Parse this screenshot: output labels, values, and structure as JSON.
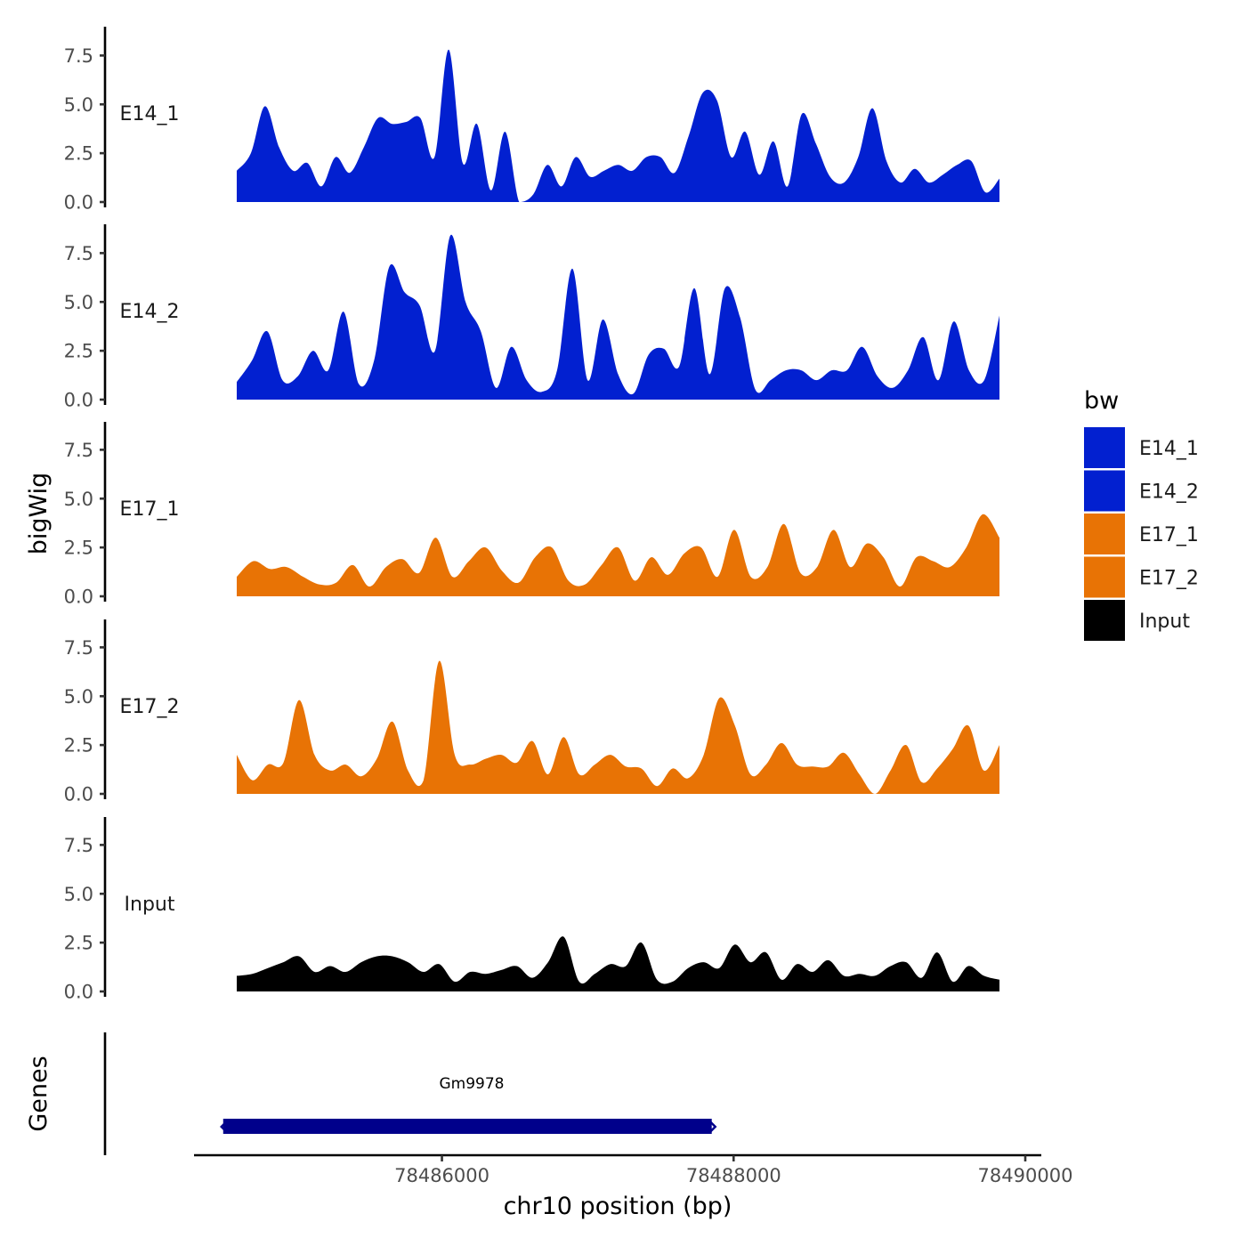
{
  "chart_data": {
    "type": "area",
    "title": "",
    "xlabel": "chr10 position (bp)",
    "ylabel": "bigWig",
    "genes_label": "Genes",
    "xlim": [
      78484300,
      78490000
    ],
    "ylim": [
      0,
      8.8
    ],
    "x_ticks": [
      {
        "value": 78486000,
        "label": "78486000"
      },
      {
        "value": 78488000,
        "label": "78488000"
      },
      {
        "value": 78490000,
        "label": "78490000"
      }
    ],
    "y_ticks": [
      {
        "value": 0.0,
        "label": "0.0"
      },
      {
        "value": 2.5,
        "label": "2.5"
      },
      {
        "value": 5.0,
        "label": "5.0"
      },
      {
        "value": 7.5,
        "label": "7.5"
      }
    ],
    "legend": {
      "title": "bw",
      "position": "right",
      "items": [
        {
          "label": "E14_1",
          "color": "#0220D0"
        },
        {
          "label": "E14_2",
          "color": "#0220D0"
        },
        {
          "label": "E17_1",
          "color": "#E87305"
        },
        {
          "label": "E17_2",
          "color": "#E87305"
        },
        {
          "label": "Input",
          "color": "#000000"
        }
      ]
    },
    "x_start": 78484550,
    "x_step": 100,
    "series": [
      {
        "name": "E14_1",
        "color": "#0220D0",
        "values": [
          1.6,
          2.5,
          4.9,
          2.8,
          1.6,
          2.0,
          0.8,
          2.3,
          1.5,
          2.8,
          4.3,
          4.0,
          4.1,
          4.3,
          2.3,
          7.8,
          2.0,
          4.0,
          0.6,
          3.6,
          0.0,
          0.4,
          1.9,
          0.8,
          2.3,
          1.3,
          1.6,
          1.9,
          1.6,
          2.3,
          2.3,
          1.5,
          3.4,
          5.6,
          5.2,
          2.3,
          3.6,
          1.4,
          3.1,
          0.8,
          4.5,
          3.0,
          1.3,
          1.0,
          2.3,
          4.8,
          2.1,
          1.0,
          1.7,
          1.0,
          1.4,
          1.9,
          2.1,
          0.5,
          1.2
        ]
      },
      {
        "name": "E14_2",
        "color": "#0220D0",
        "values": [
          0.9,
          2.0,
          3.5,
          1.0,
          1.2,
          2.5,
          1.5,
          4.5,
          0.8,
          2.0,
          6.8,
          5.5,
          4.8,
          2.5,
          8.4,
          5.0,
          3.5,
          0.6,
          2.7,
          1.0,
          0.4,
          1.5,
          6.7,
          1.0,
          4.1,
          1.3,
          0.3,
          2.3,
          2.6,
          1.7,
          5.7,
          1.3,
          5.7,
          4.2,
          0.5,
          1.0,
          1.5,
          1.5,
          1.0,
          1.5,
          1.5,
          2.7,
          1.2,
          0.6,
          1.5,
          3.2,
          1.0,
          4.0,
          1.5,
          1.0,
          4.3
        ]
      },
      {
        "name": "E17_1",
        "color": "#E87305",
        "values": [
          1.0,
          1.8,
          1.4,
          1.5,
          1.0,
          0.6,
          0.7,
          1.6,
          0.5,
          1.5,
          1.9,
          1.2,
          3.0,
          1.0,
          1.8,
          2.5,
          1.3,
          0.7,
          2.0,
          2.5,
          0.8,
          0.6,
          1.6,
          2.5,
          0.8,
          2.0,
          1.1,
          2.2,
          2.5,
          1.0,
          3.4,
          1.0,
          1.5,
          3.7,
          1.2,
          1.5,
          3.4,
          1.5,
          2.7,
          2.0,
          0.5,
          2.0,
          1.8,
          1.5,
          2.5,
          4.2,
          3.0
        ]
      },
      {
        "name": "E17_2",
        "color": "#E87305",
        "values": [
          2.0,
          0.7,
          1.5,
          1.6,
          4.8,
          2.0,
          1.2,
          1.5,
          0.9,
          1.8,
          3.7,
          1.2,
          0.7,
          6.8,
          2.0,
          1.5,
          1.8,
          2.0,
          1.6,
          2.7,
          1.0,
          2.9,
          1.0,
          1.5,
          2.0,
          1.4,
          1.3,
          0.4,
          1.3,
          0.8,
          2.0,
          4.9,
          3.5,
          1.0,
          1.5,
          2.6,
          1.5,
          1.4,
          1.4,
          2.1,
          1.0,
          0.0,
          1.2,
          2.5,
          0.6,
          1.3,
          2.3,
          3.5,
          1.2,
          2.5
        ]
      },
      {
        "name": "Input",
        "color": "#000000",
        "values": [
          0.8,
          0.9,
          1.2,
          1.5,
          1.8,
          1.0,
          1.3,
          1.0,
          1.5,
          1.8,
          1.8,
          1.5,
          1.0,
          1.4,
          0.5,
          1.0,
          0.9,
          1.1,
          1.3,
          0.7,
          1.5,
          2.8,
          0.5,
          0.9,
          1.4,
          1.3,
          2.5,
          0.6,
          0.5,
          1.2,
          1.5,
          1.2,
          2.4,
          1.5,
          2.0,
          0.6,
          1.4,
          1.0,
          1.6,
          0.8,
          0.9,
          0.8,
          1.3,
          1.5,
          0.7,
          2.0,
          0.5,
          1.3,
          0.8,
          0.6
        ]
      }
    ],
    "genes": [
      {
        "name": "Gm9978",
        "start": 78484500,
        "end": 78487850,
        "strand": "-",
        "color": "#00008B"
      }
    ]
  }
}
